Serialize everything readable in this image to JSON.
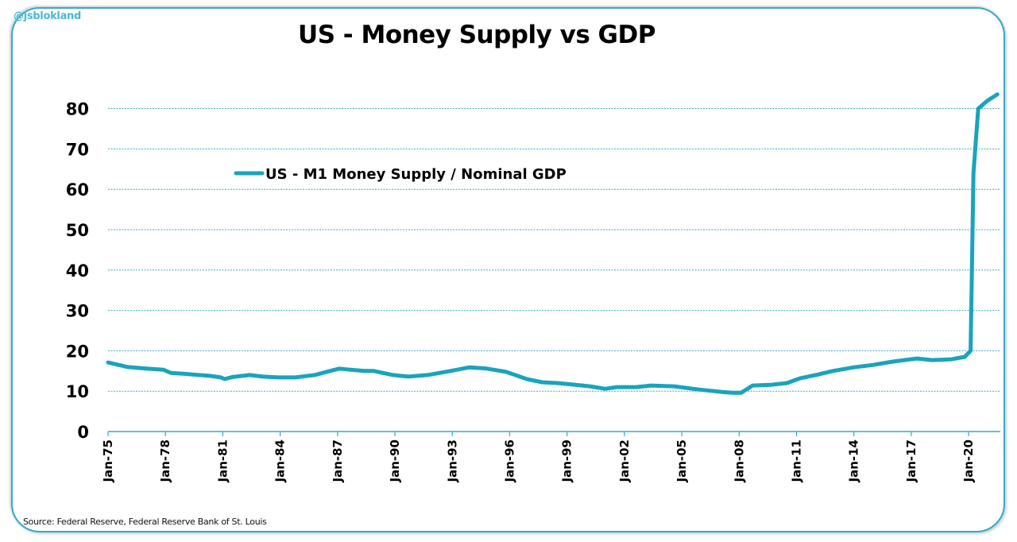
{
  "watermark": "@jsblokland",
  "source": "Source: Federal Reserve, Federal Reserve Bank of St. Louis",
  "colors": {
    "line": "#1aa3bd",
    "grid": "#3aa9c2",
    "frame": "#3aa9c2",
    "handle": "#4ab8d3"
  },
  "chart_data": {
    "type": "line",
    "title": "US - Money Supply vs GDP",
    "xlabel": "",
    "ylabel": "",
    "ylim": [
      0,
      80
    ],
    "yticks": [
      0,
      10,
      20,
      30,
      40,
      50,
      60,
      70,
      80
    ],
    "ytick_labels": [
      "0",
      "10",
      "20",
      "30",
      "40",
      "50",
      "60",
      "70",
      "80"
    ],
    "xlim": [
      1975.0,
      2021.6
    ],
    "xticks": [
      1975,
      1978,
      1981,
      1984,
      1987,
      1990,
      1993,
      1996,
      1999,
      2002,
      2005,
      2008,
      2011,
      2014,
      2017,
      2020
    ],
    "xtick_labels": [
      "Jan-75",
      "Jan-78",
      "Jan-81",
      "Jan-84",
      "Jan-87",
      "Jan-90",
      "Jan-93",
      "Jan-96",
      "Jan-99",
      "Jan-02",
      "Jan-05",
      "Jan-08",
      "Jan-11",
      "Jan-14",
      "Jan-17",
      "Jan-20"
    ],
    "grid": true,
    "legend": "top-left-inside",
    "series": [
      {
        "name": "US - M1 Money Supply / Nominal GDP",
        "x": [
          1975.0,
          1976.0,
          1977.0,
          1977.9,
          1978.3,
          1979.0,
          1980.3,
          1980.9,
          1981.1,
          1981.5,
          1982.4,
          1983.1,
          1983.9,
          1984.8,
          1985.8,
          1986.6,
          1987.1,
          1987.5,
          1988.4,
          1988.9,
          1989.9,
          1990.7,
          1991.7,
          1992.9,
          1993.9,
          1994.8,
          1995.8,
          1996.9,
          1997.7,
          1998.5,
          1999.4,
          2000.2,
          2001.0,
          2001.6,
          2002.6,
          2003.4,
          2004.6,
          2005.9,
          2007.1,
          2007.7,
          2008.1,
          2008.7,
          2009.7,
          2010.5,
          2011.2,
          2012.0,
          2012.9,
          2014.0,
          2015.0,
          2016.0,
          2017.3,
          2018.1,
          2019.1,
          2019.8,
          2020.1,
          2020.25,
          2020.5,
          2021.0,
          2021.5
        ],
        "values": [
          17.1,
          16.0,
          15.6,
          15.3,
          14.5,
          14.3,
          13.8,
          13.4,
          13.0,
          13.5,
          14.0,
          13.6,
          13.4,
          13.4,
          14.0,
          15.0,
          15.6,
          15.4,
          15.0,
          15.0,
          14.0,
          13.6,
          14.0,
          15.0,
          15.9,
          15.6,
          14.8,
          13.0,
          12.2,
          12.0,
          11.6,
          11.2,
          10.6,
          11.0,
          11.0,
          11.4,
          11.2,
          10.4,
          9.8,
          9.6,
          9.6,
          11.4,
          11.6,
          12.0,
          13.2,
          14.0,
          15.0,
          15.9,
          16.5,
          17.3,
          18.1,
          17.7,
          17.9,
          18.5,
          20.0,
          64.0,
          80.0,
          82.0,
          83.5
        ]
      }
    ]
  }
}
